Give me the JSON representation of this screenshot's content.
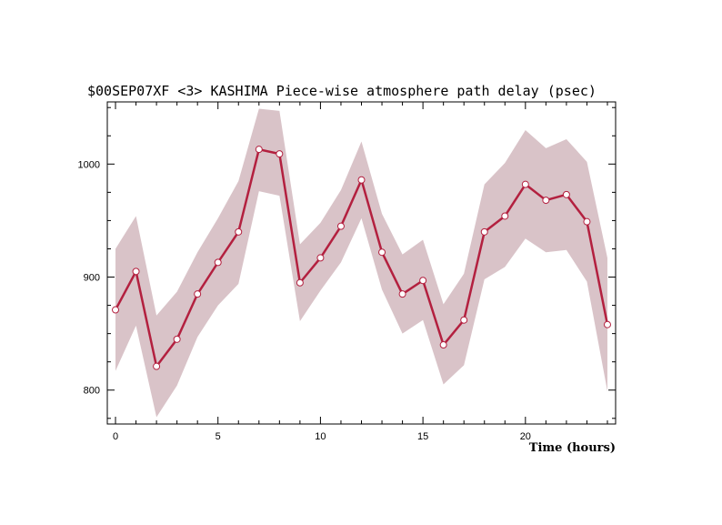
{
  "chart_data": {
    "type": "line",
    "title": "$00SEP07XF <3>  KASHIMA   Piece-wise atmosphere path delay (psec)",
    "xlabel": "Time (hours)",
    "ylabel": "",
    "xlim": [
      -0.4,
      24.4
    ],
    "ylim": [
      770,
      1055
    ],
    "xticks": [
      0,
      5,
      10,
      15,
      20
    ],
    "yticks": [
      800,
      900,
      1000
    ],
    "grid": false,
    "colors": {
      "line": "#b3203f",
      "band": "#d9c3c8",
      "marker_fill": "#ffffff"
    },
    "series": [
      {
        "x": [
          0,
          1,
          2,
          3,
          4,
          5,
          6,
          7,
          8,
          9,
          10,
          11,
          12,
          13,
          14,
          15,
          16,
          17,
          18,
          19,
          20,
          21,
          22,
          23,
          24
        ],
        "values": [
          871,
          905,
          821,
          845,
          885,
          913,
          940,
          1013,
          1009,
          895,
          917,
          945,
          986,
          922,
          885,
          897,
          840,
          862,
          940,
          954,
          982,
          968,
          973,
          949,
          858
        ],
        "upper": [
          925,
          954,
          866,
          887,
          922,
          952,
          985,
          1049,
          1047,
          929,
          948,
          977,
          1020,
          956,
          920,
          933,
          876,
          903,
          982,
          1001,
          1030,
          1014,
          1022,
          1002,
          917
        ],
        "lower": [
          817,
          857,
          776,
          804,
          847,
          875,
          894,
          976,
          972,
          861,
          888,
          913,
          952,
          889,
          850,
          862,
          805,
          822,
          898,
          909,
          934,
          922,
          924,
          896,
          799
        ]
      }
    ]
  }
}
